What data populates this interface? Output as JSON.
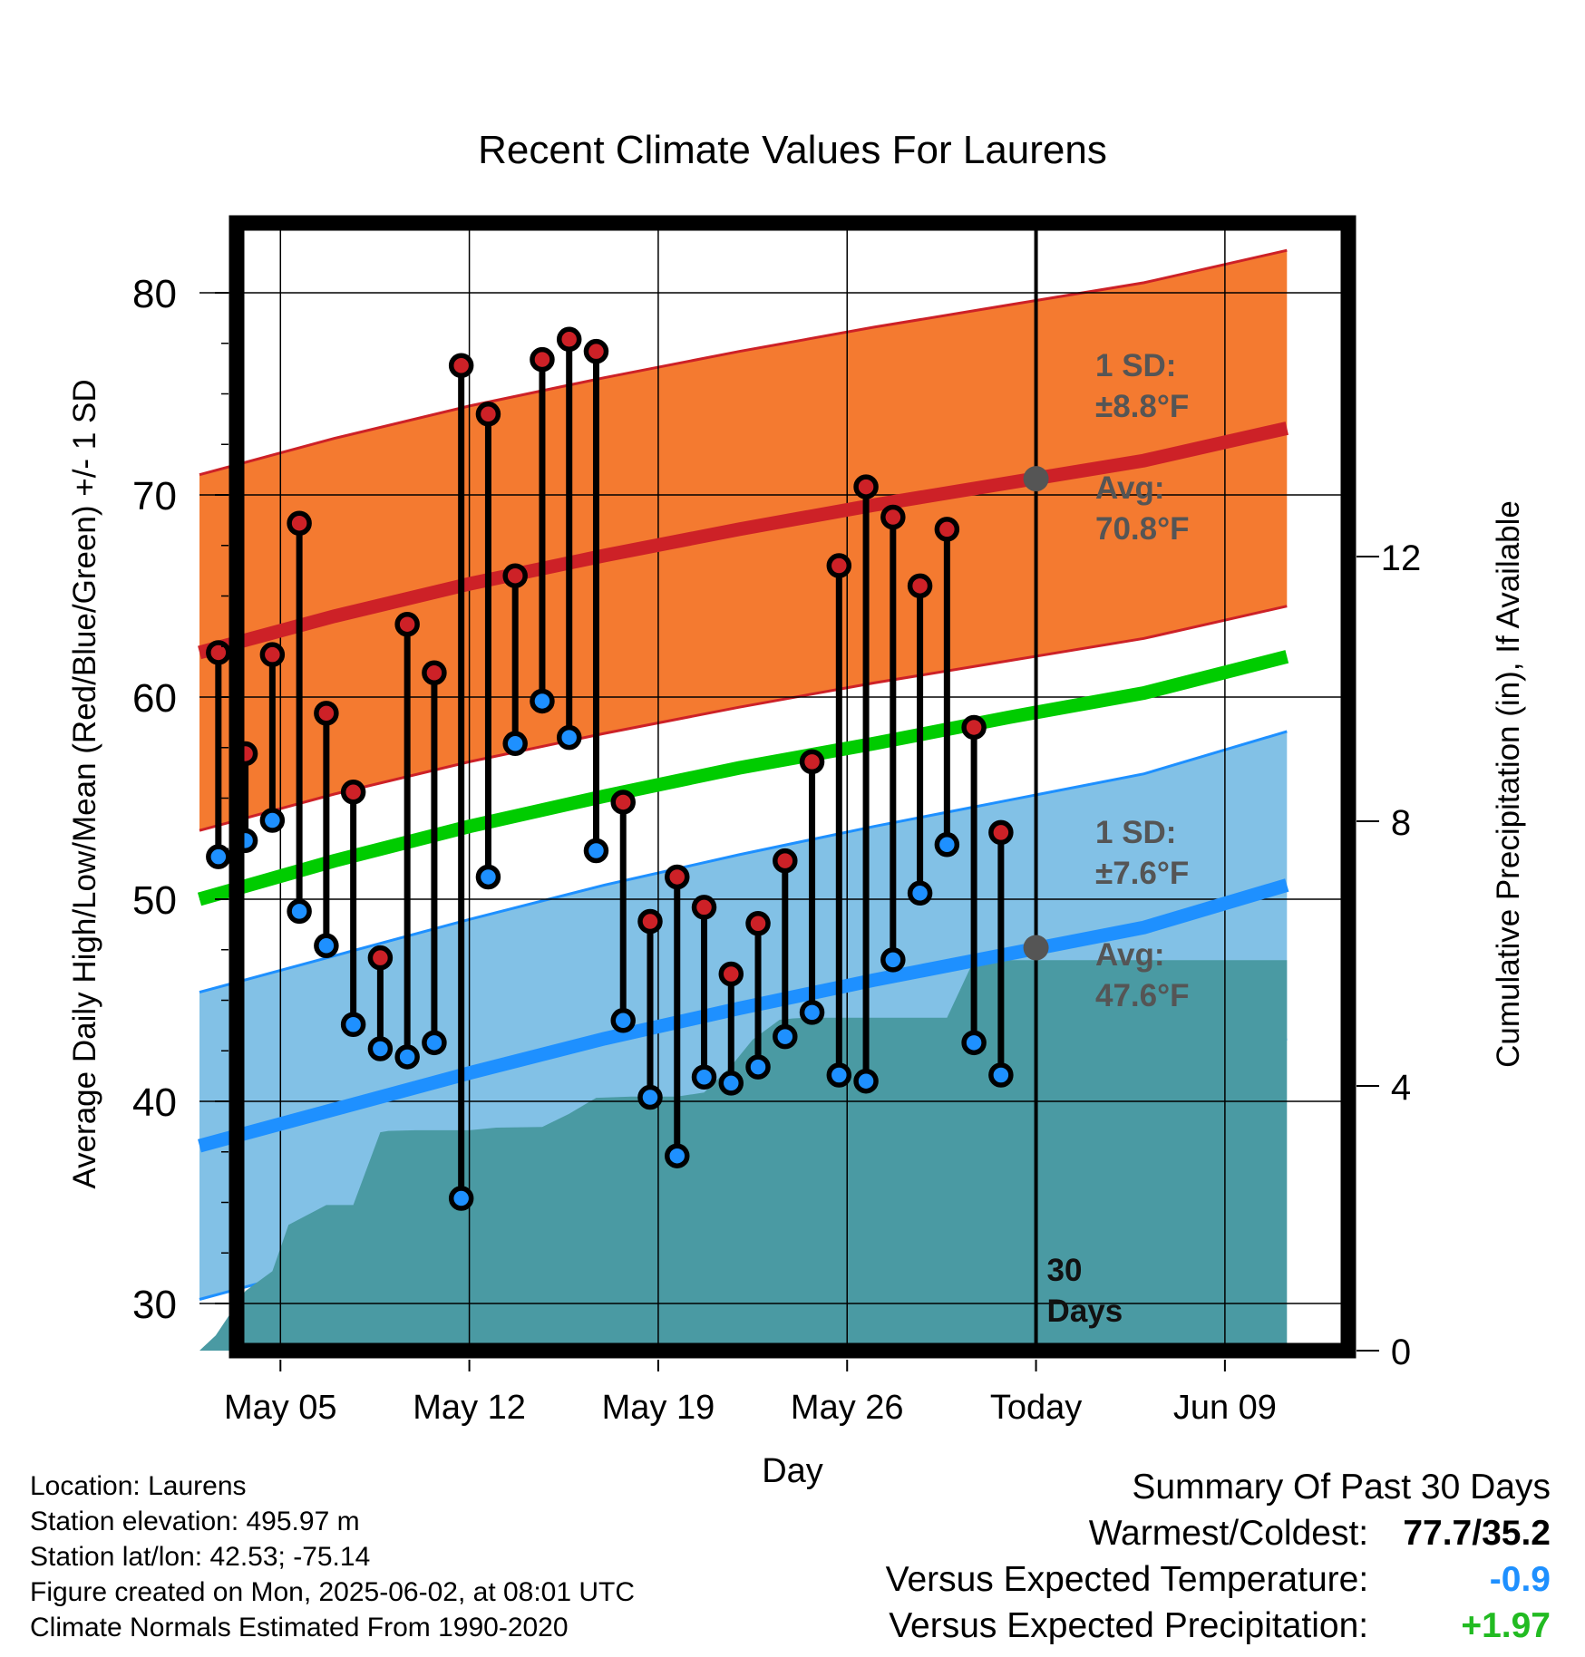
{
  "title": "Recent Climate Values For Laurens",
  "ylabel_left": "Average Daily High/Low/Mean (Red/Blue/Green) +/- 1 SD",
  "ylabel_right": "Cumulative Precipitation (in), If Available",
  "xlabel": "Day",
  "today_marker_label": "30 Days",
  "annotations": {
    "high_sd_label": "1 SD:",
    "high_sd_value": "±8.8°F",
    "high_avg_label": "Avg:",
    "high_avg_value": "70.8°F",
    "low_sd_label": "1 SD:",
    "low_sd_value": "±7.6°F",
    "low_avg_label": "Avg:",
    "low_avg_value": "47.6°F"
  },
  "footer": {
    "location": "Location: Laurens",
    "elevation": "Station elevation: 495.97 m",
    "latlon": "Station lat/lon: 42.53; -75.14",
    "created": "Figure created on Mon, 2025-06-02, at 08:01 UTC",
    "normals": "Climate Normals Estimated From 1990-2020"
  },
  "summary": {
    "title": "Summary Of Past 30 Days",
    "warm_cold_label": "Warmest/Coldest:",
    "warm_cold_value": "77.7/35.2",
    "temp_label": "Versus Expected Temperature:",
    "temp_value": "-0.9",
    "precip_label": "Versus Expected Precipitation:",
    "precip_value": "+1.97"
  },
  "colors": {
    "high_band": "#f47a30",
    "high_line": "#cd2127",
    "low_band": "#82c1e6",
    "low_line": "#1e90ff",
    "mean_line": "#00cc00",
    "precip": "#4a9aa3",
    "high_dot": "#cd2127",
    "low_dot": "#1e90ff",
    "annotation": "#555555",
    "temp_summary": "#1e90ff",
    "precip_summary": "#22bb22"
  },
  "chart_data": {
    "type": "line",
    "x_axis": {
      "start": "May 02",
      "end": "Jun 13",
      "today": "Jun 02",
      "tick_labels": [
        "May 05",
        "May 12",
        "May 19",
        "May 26",
        "Today",
        "Jun 09"
      ],
      "tick_days": [
        3,
        10,
        17,
        24,
        31,
        38
      ]
    },
    "y_left": {
      "min": 27.5,
      "max": 83.5,
      "ticks": [
        30,
        40,
        50,
        60,
        70,
        80
      ]
    },
    "y_right": {
      "min": 0,
      "max": 16.6,
      "ticks": [
        0,
        4,
        8,
        12
      ]
    },
    "normals": {
      "days": [
        0,
        5,
        10,
        15,
        20,
        25,
        30,
        35,
        40.3
      ],
      "high_avg": [
        62.2,
        64.0,
        65.6,
        67.0,
        68.3,
        69.5,
        70.6,
        71.7,
        73.3
      ],
      "high_sd": 8.8,
      "low_avg": [
        37.8,
        39.6,
        41.4,
        43.1,
        44.6,
        46.0,
        47.3,
        48.6,
        50.7
      ],
      "low_sd": 7.6,
      "mean": [
        50.0,
        51.9,
        53.6,
        55.1,
        56.5,
        57.7,
        59.0,
        60.2,
        62.0
      ]
    },
    "observed": {
      "days": [
        0.7,
        1.7,
        2.7,
        3.7,
        4.7,
        5.7,
        6.7,
        7.7,
        8.7,
        9.7,
        10.7,
        11.7,
        12.7,
        13.7,
        14.7,
        15.7,
        16.7,
        17.7,
        18.7,
        19.7,
        20.7,
        21.7,
        22.7,
        23.7,
        24.7,
        25.7,
        26.7,
        27.7,
        28.7,
        29.7
      ],
      "high": [
        62.2,
        57.2,
        62.1,
        68.6,
        59.2,
        55.3,
        47.1,
        63.6,
        61.2,
        76.4,
        74.0,
        66.0,
        76.7,
        77.7,
        77.1,
        54.8,
        48.9,
        51.1,
        49.6,
        46.3,
        48.8,
        51.9,
        56.8,
        66.5,
        70.4,
        68.9,
        65.5,
        68.3,
        58.5,
        53.3
      ],
      "low": [
        52.1,
        52.9,
        53.9,
        49.4,
        47.7,
        43.8,
        42.6,
        42.2,
        42.9,
        35.2,
        51.1,
        57.7,
        59.8,
        58.0,
        52.4,
        44.0,
        40.2,
        37.3,
        41.2,
        40.9,
        41.7,
        43.2,
        44.4,
        41.3,
        41.0,
        47.0,
        50.3,
        52.7,
        42.9,
        41.3
      ]
    },
    "precipitation": {
      "days": [
        0,
        0.6,
        1.7,
        2.7,
        3.3,
        4.7,
        5.7,
        6.7,
        7.0,
        8.0,
        10.0,
        11.0,
        12.7,
        13.7,
        14.7,
        16.0,
        17.7,
        18.7,
        19.7,
        20.5,
        21.5,
        22.0,
        22.5,
        23.0,
        24.7,
        26.7,
        27.7,
        28.7,
        29.7,
        31,
        40.3
      ],
      "cumulative": [
        0,
        0.23,
        0.9,
        1.2,
        1.9,
        2.2,
        2.2,
        3.3,
        3.32,
        3.33,
        3.33,
        3.37,
        3.38,
        3.58,
        3.82,
        3.84,
        3.84,
        3.9,
        4.3,
        4.7,
        5.0,
        5.02,
        5.03,
        5.03,
        5.03,
        5.03,
        5.03,
        5.9,
        5.9,
        5.9,
        5.9
      ]
    }
  }
}
